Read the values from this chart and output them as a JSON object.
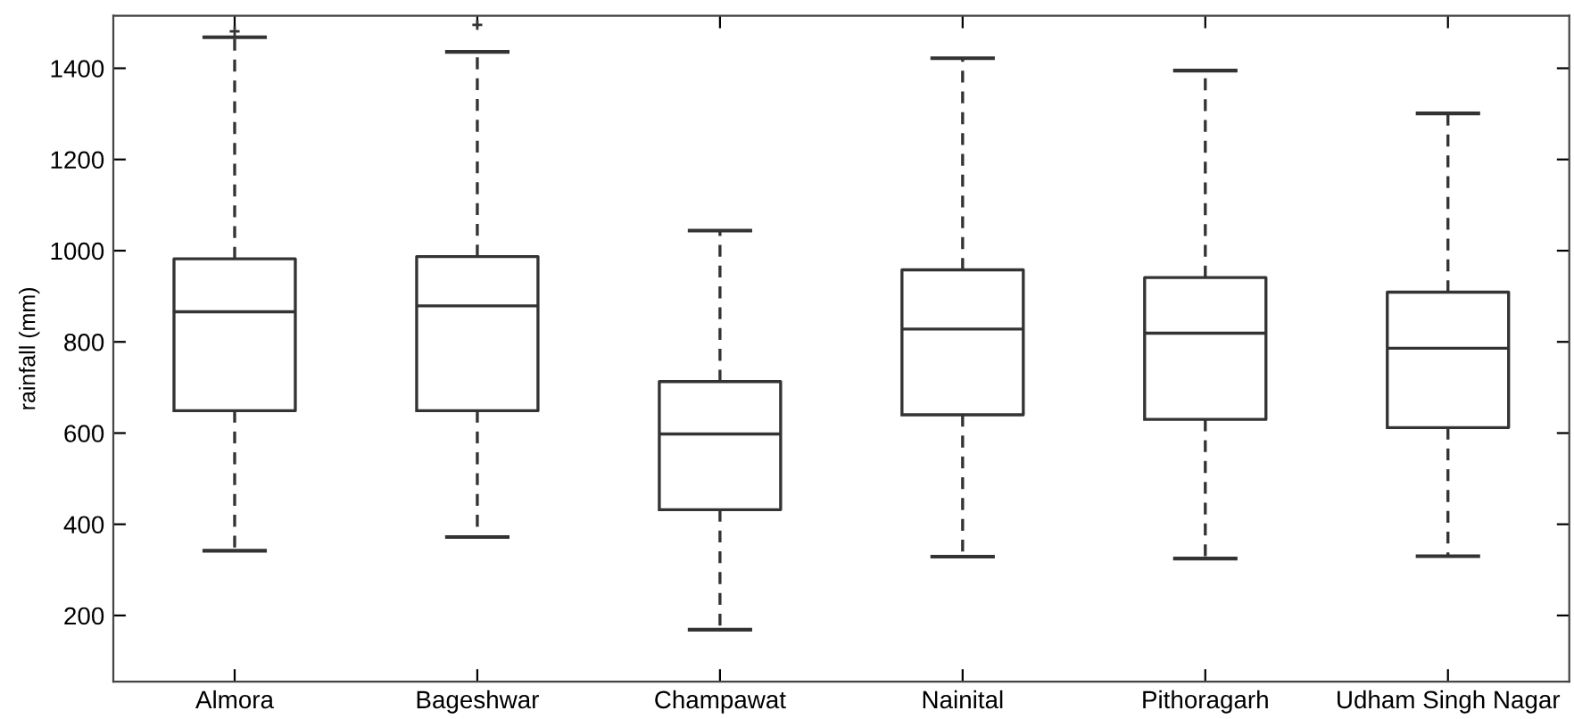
{
  "chart_data": {
    "type": "box",
    "ylabel": "rainfall (mm)",
    "categories": [
      "Almora",
      "Bageshwar",
      "Champawat",
      "Nainital",
      "Pithoragarh",
      "Udham Singh Nagar"
    ],
    "boxes": [
      {
        "low": 342,
        "q1": 649,
        "median": 866,
        "q3": 982,
        "high": 1468,
        "outliers": [
          1481
        ]
      },
      {
        "low": 372,
        "q1": 649,
        "median": 879,
        "q3": 987,
        "high": 1436,
        "outliers": [
          1495
        ]
      },
      {
        "low": 169,
        "q1": 432,
        "median": 598,
        "q3": 713,
        "high": 1044
      },
      {
        "low": 329,
        "q1": 640,
        "median": 828,
        "q3": 958,
        "high": 1422
      },
      {
        "low": 325,
        "q1": 630,
        "median": 819,
        "q3": 941,
        "high": 1395
      },
      {
        "low": 330,
        "q1": 612,
        "median": 786,
        "q3": 909,
        "high": 1301
      }
    ],
    "color": "#333333",
    "line_style": "dashed",
    "marker": "cross",
    "ylim": [
      55,
      1515
    ],
    "yticks": [
      200,
      400,
      600,
      800,
      1000,
      1200,
      1400
    ],
    "grid": false
  }
}
